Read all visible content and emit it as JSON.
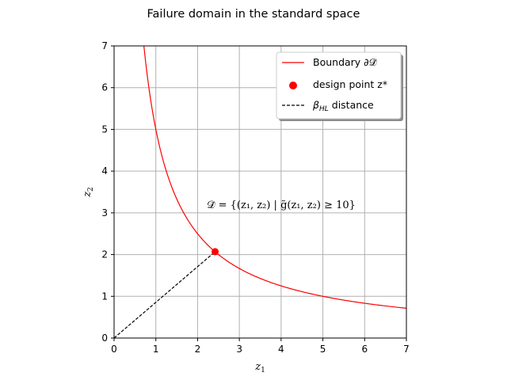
{
  "chart_data": {
    "type": "line",
    "title": "Failure domain in the standard space",
    "xlabel": "z",
    "xlabel_sub": "1",
    "ylabel": "z",
    "ylabel_sub": "2",
    "xlim": [
      0,
      7
    ],
    "ylim": [
      0,
      7
    ],
    "xticks": [
      "0",
      "1",
      "2",
      "3",
      "4",
      "5",
      "6",
      "7"
    ],
    "yticks": [
      "0",
      "1",
      "2",
      "3",
      "4",
      "5",
      "6",
      "7"
    ],
    "grid": true,
    "legend_position": "top-right",
    "annotation": "𝒟̃ = {(z₁, z₂) | g̃(z₁, z₂) ≥ 10}",
    "series": [
      {
        "name": "Boundary ∂𝒟̃",
        "kind": "line",
        "color": "#ff0000",
        "equation": "z1 * z2 = 5",
        "x": [
          0.714,
          0.8,
          0.9,
          1.0,
          1.2,
          1.4,
          1.6,
          1.8,
          2.0,
          2.2,
          2.4,
          2.6,
          2.8,
          3.0,
          3.5,
          4.0,
          4.5,
          5.0,
          5.5,
          6.0,
          6.5,
          7.0
        ],
        "y": [
          7.0,
          6.25,
          5.556,
          5.0,
          4.167,
          3.571,
          3.125,
          2.778,
          2.5,
          2.273,
          2.083,
          1.923,
          1.786,
          1.667,
          1.429,
          1.25,
          1.111,
          1.0,
          0.909,
          0.833,
          0.769,
          0.714
        ]
      },
      {
        "name": "design point z*",
        "kind": "point",
        "color": "#ff0000",
        "x": [
          2.42
        ],
        "y": [
          2.07
        ]
      },
      {
        "name": "β_HL distance",
        "kind": "dashed-line",
        "color": "#000000",
        "x": [
          0,
          2.42
        ],
        "y": [
          0,
          2.07
        ]
      }
    ]
  },
  "legend": {
    "boundary_label": "Boundary ∂𝒟̃",
    "design_label": "design point z*",
    "beta_label": "β",
    "beta_sub": "HL",
    "beta_rest": " distance"
  }
}
